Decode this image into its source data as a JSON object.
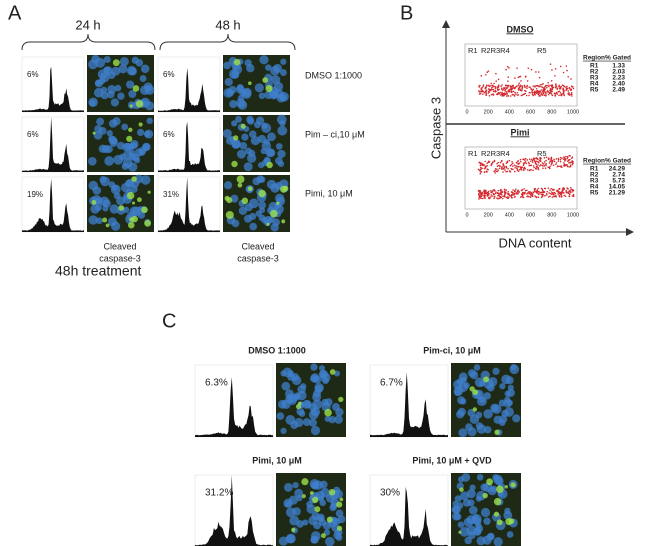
{
  "panel_a": {
    "label": "A",
    "time_points": [
      "24 h",
      "48 h"
    ],
    "rows": [
      {
        "treatment": "DMSO 1:1000",
        "percent": [
          "6%",
          "6%"
        ]
      },
      {
        "treatment": "Pim – ci,10 μM",
        "percent": [
          "6%",
          "6%"
        ]
      },
      {
        "treatment": "Pimi, 10 μM",
        "percent": [
          "19%",
          "31%"
        ]
      }
    ],
    "caption_lines": [
      "Cleaved",
      "caspase-3"
    ],
    "footer": "48h treatment"
  },
  "panel_b": {
    "label": "B",
    "y_axis_label": "Caspase 3",
    "x_axis_label": "DNA content",
    "x_ticks": [
      "0",
      "200",
      "400",
      "600",
      "800",
      "1000"
    ],
    "plots": [
      {
        "title": "DMSO",
        "regions": [
          "R1",
          "R2R3R4",
          "R5"
        ],
        "table_header": "Region% Gated",
        "table_rows": [
          [
            "R1",
            "1.33"
          ],
          [
            "R2",
            "2.03"
          ],
          [
            "R3",
            "2.23"
          ],
          [
            "R4",
            "2.40"
          ],
          [
            "R5",
            "2.49"
          ]
        ]
      },
      {
        "title": "Pimi",
        "regions": [
          "R1",
          "R2R3R4",
          "R5"
        ],
        "table_header": "Region% Gated",
        "table_rows": [
          [
            "R1",
            "24.29"
          ],
          [
            "R2",
            "2.74"
          ],
          [
            "R3",
            "5.73"
          ],
          [
            "R4",
            "14.05"
          ],
          [
            "R5",
            "21.29"
          ]
        ]
      }
    ]
  },
  "panel_c": {
    "label": "C",
    "panels": [
      {
        "title": "DMSO 1:1000",
        "percent": "6.3%"
      },
      {
        "title": "Pim-ci, 10 μM",
        "percent": "6.7%"
      },
      {
        "title": "Pimi, 10 μM",
        "percent": "31.2%"
      },
      {
        "title": "Pimi, 10 μM + QVD",
        "percent": "30%"
      }
    ]
  }
}
